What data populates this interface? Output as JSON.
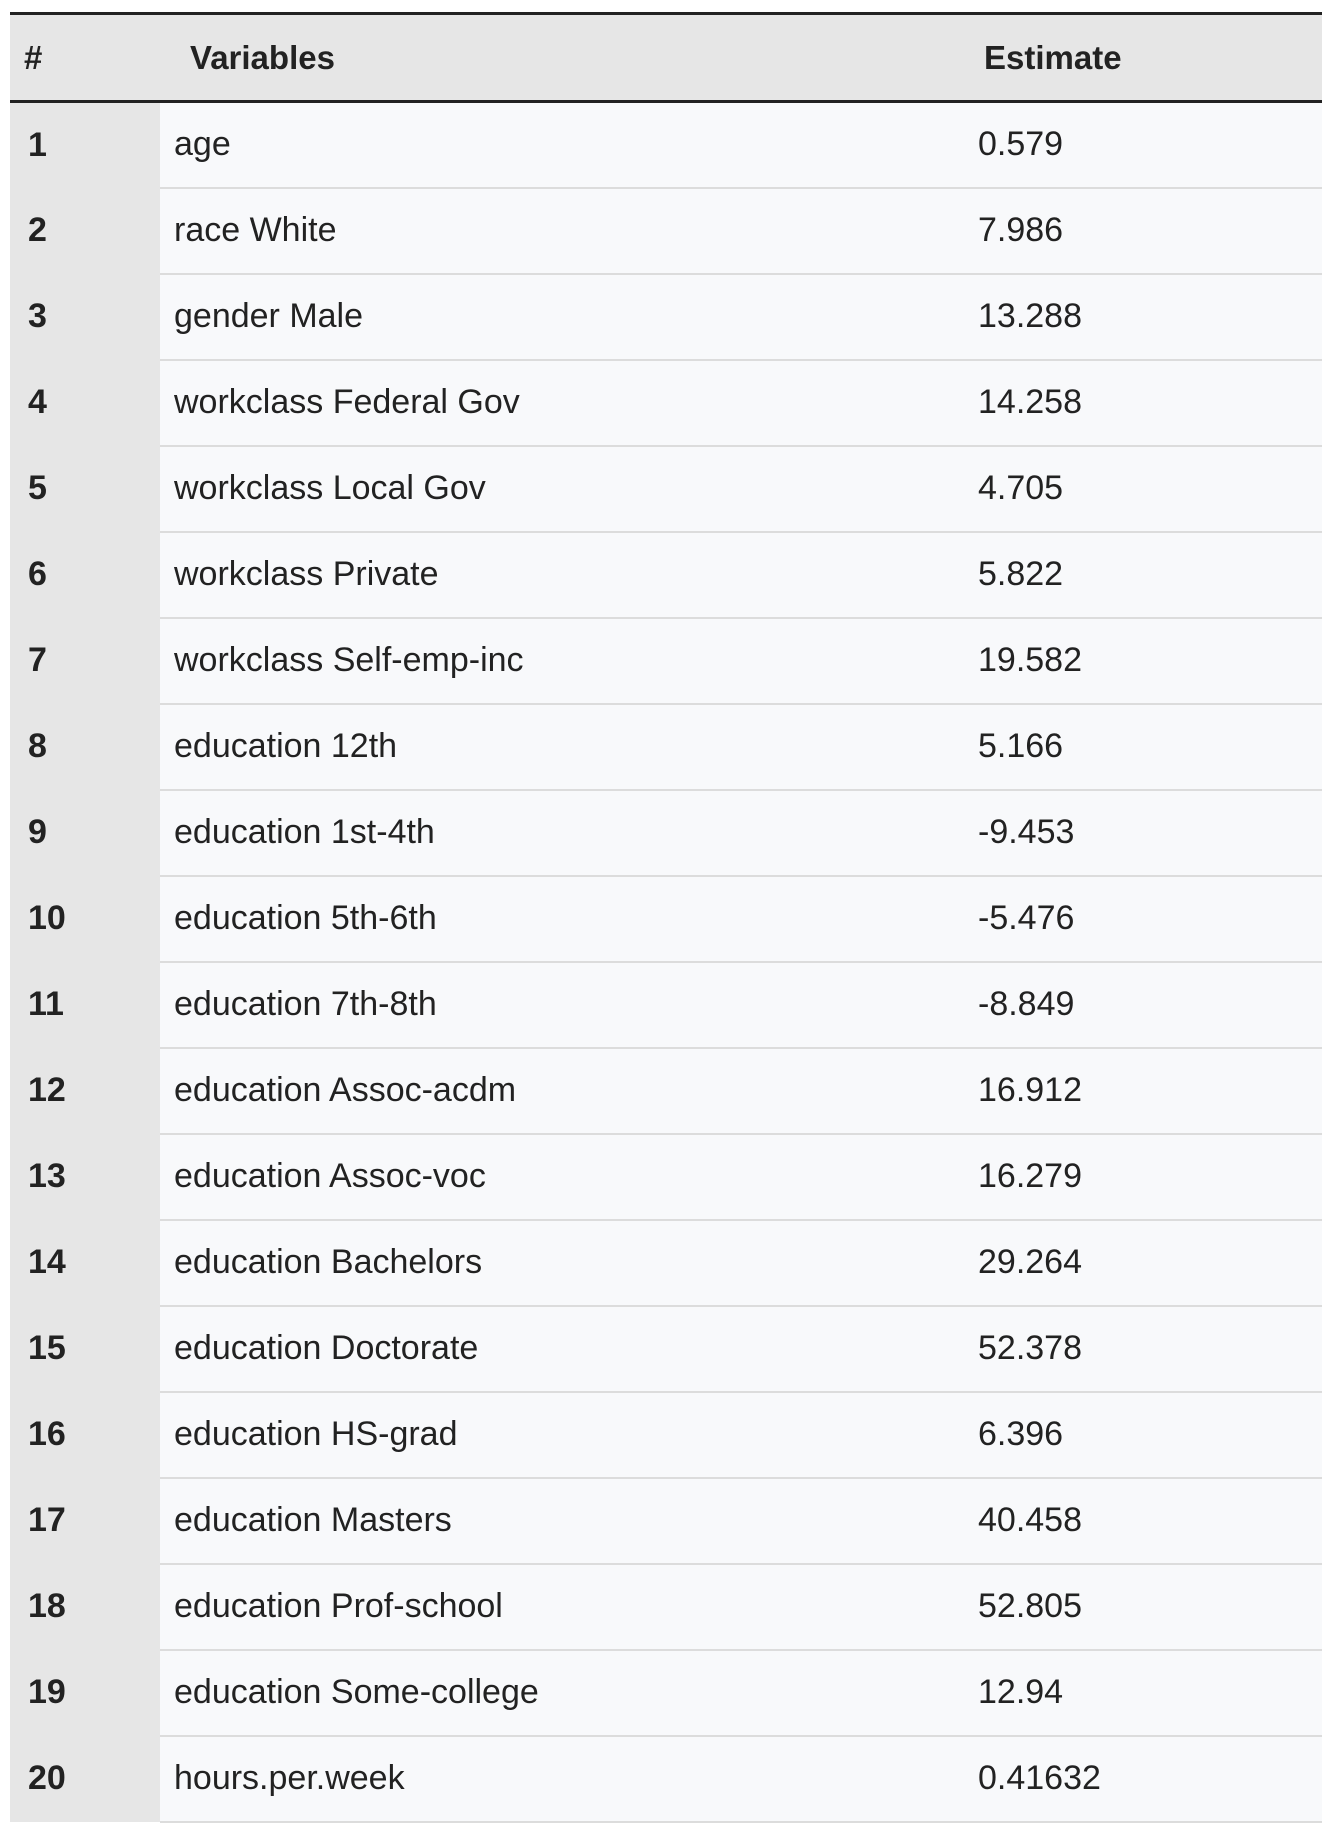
{
  "table": {
    "headers": {
      "num": "#",
      "variable": "Variables",
      "estimate": "Estimate"
    },
    "rows": [
      {
        "num": "1",
        "variable": "age",
        "estimate": "0.579"
      },
      {
        "num": "2",
        "variable": "race White",
        "estimate": "7.986"
      },
      {
        "num": "3",
        "variable": "gender Male",
        "estimate": "13.288"
      },
      {
        "num": "4",
        "variable": "workclass Federal Gov",
        "estimate": "14.258"
      },
      {
        "num": "5",
        "variable": "workclass Local Gov",
        "estimate": "4.705"
      },
      {
        "num": "6",
        "variable": "workclass Private",
        "estimate": "5.822"
      },
      {
        "num": "7",
        "variable": "workclass Self-emp-inc",
        "estimate": "19.582"
      },
      {
        "num": "8",
        "variable": "education 12th",
        "estimate": "5.166"
      },
      {
        "num": "9",
        "variable": "education 1st-4th",
        "estimate": "-9.453"
      },
      {
        "num": "10",
        "variable": "education 5th-6th",
        "estimate": "-5.476"
      },
      {
        "num": "11",
        "variable": "education 7th-8th",
        "estimate": "-8.849"
      },
      {
        "num": "12",
        "variable": "education Assoc-acdm",
        "estimate": "16.912"
      },
      {
        "num": "13",
        "variable": "education Assoc-voc",
        "estimate": "16.279"
      },
      {
        "num": "14",
        "variable": "education Bachelors",
        "estimate": "29.264"
      },
      {
        "num": "15",
        "variable": "education Doctorate",
        "estimate": "52.378"
      },
      {
        "num": "16",
        "variable": "education HS-grad",
        "estimate": "6.396"
      },
      {
        "num": "17",
        "variable": "education Masters",
        "estimate": "40.458"
      },
      {
        "num": "18",
        "variable": "education Prof-school",
        "estimate": "52.805"
      },
      {
        "num": "19",
        "variable": "education Some-college",
        "estimate": "12.94"
      },
      {
        "num": "20",
        "variable": "hours.per.week",
        "estimate": "0.41632"
      }
    ]
  }
}
